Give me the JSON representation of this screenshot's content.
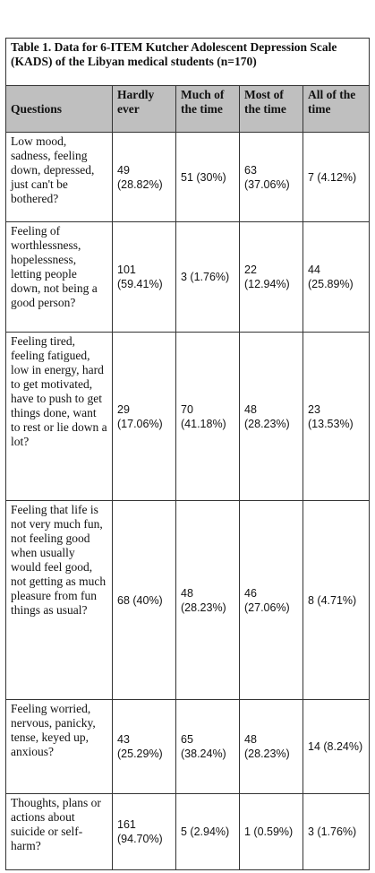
{
  "table": {
    "caption": "Table 1. Data for 6-ITEM Kutcher Adolescent Depression Scale (KADS) of the Libyan medical students (n=170)",
    "header": [
      "Questions",
      "Hardly ever",
      "Much of the time",
      "Most of the time",
      "All of the time"
    ],
    "rows": [
      [
        "Low mood, sadness, feeling down, depressed, just can't be bothered?",
        "49 (28.82%)",
        "51 (30%)",
        "63 (37.06%)",
        "7 (4.12%)"
      ],
      [
        "Feeling of worthlessness, hopelessness, letting people down, not being a good person?",
        "101 (59.41%)",
        "3 (1.76%)",
        "22 (12.94%)",
        "44 (25.89%)"
      ],
      [
        "Feeling tired, feeling fatigued, low in energy, hard to get motivated, have to push to get things done, want to rest or lie down a lot?",
        "29 (17.06%)",
        "70 (41.18%)",
        "48 (28.23%)",
        "23 (13.53%)"
      ],
      [
        "Feeling that life is not very much fun, not feeling good when usually would feel good, not getting as much pleasure from fun things as usual?",
        "68 (40%)",
        "48 (28.23%)",
        "46 (27.06%)",
        "8 (4.71%)"
      ],
      [
        "Feeling worried, nervous, panicky, tense, keyed up, anxious?",
        "43 (25.29%)",
        "65 (38.24%)",
        "48 (28.23%)",
        "14 (8.24%)"
      ],
      [
        "Thoughts, plans or actions about suicide or self-harm?",
        "161 (94.70%)",
        "5 (2.94%)",
        "1 (0.59%)",
        "3 (1.76%)"
      ]
    ]
  }
}
